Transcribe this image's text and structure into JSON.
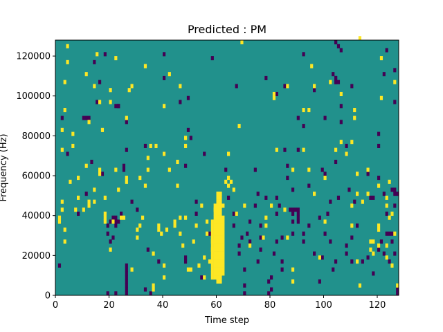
{
  "chart_data": {
    "type": "heatmap",
    "title": "Predicted : PM",
    "xlabel": "Time step",
    "ylabel": "Frequency (Hz)",
    "xlim": [
      0,
      128
    ],
    "ylim": [
      0,
      128000
    ],
    "xticks": [
      0,
      20,
      40,
      60,
      80,
      100,
      120
    ],
    "xtick_labels": [
      "0",
      "20",
      "40",
      "60",
      "80",
      "100",
      "120"
    ],
    "yticks": [
      0,
      20000,
      40000,
      60000,
      80000,
      100000,
      120000
    ],
    "ytick_labels": [
      "0",
      "20000",
      "40000",
      "60000",
      "80000",
      "100000",
      "120000"
    ],
    "grid": false,
    "legend": "none",
    "bin_width_hz": 2000,
    "colors": {
      "background_value": "#21918c",
      "low_value": "#440154",
      "high_value": "#fde725"
    },
    "high_cells": [
      [
        1,
        36000
      ],
      [
        1,
        38000
      ],
      [
        2,
        42000
      ],
      [
        2,
        46000
      ],
      [
        2,
        72000
      ],
      [
        2,
        82000
      ],
      [
        3,
        26000
      ],
      [
        3,
        32000
      ],
      [
        3,
        92000
      ],
      [
        3,
        106000
      ],
      [
        4,
        116000
      ],
      [
        4,
        124000
      ],
      [
        5,
        56000
      ],
      [
        6,
        74000
      ],
      [
        6,
        80000
      ],
      [
        7,
        42000
      ],
      [
        8,
        48000
      ],
      [
        8,
        58000
      ],
      [
        10,
        42000
      ],
      [
        11,
        64000
      ],
      [
        11,
        110000
      ],
      [
        12,
        44000
      ],
      [
        12,
        46000
      ],
      [
        12,
        86000
      ],
      [
        14,
        46000
      ],
      [
        14,
        52000
      ],
      [
        14,
        104000
      ],
      [
        15,
        120000
      ],
      [
        16,
        60000
      ],
      [
        16,
        62000
      ],
      [
        16,
        96000
      ],
      [
        17,
        82000
      ],
      [
        18,
        36000
      ],
      [
        18,
        38000
      ],
      [
        18,
        40000
      ],
      [
        18,
        48000
      ],
      [
        20,
        22000
      ],
      [
        20,
        96000
      ],
      [
        20,
        102000
      ],
      [
        21,
        36000
      ],
      [
        22,
        62000
      ],
      [
        22,
        118000
      ],
      [
        23,
        52000
      ],
      [
        24,
        38000
      ],
      [
        25,
        38000
      ],
      [
        26,
        88000
      ],
      [
        26,
        58000
      ],
      [
        26,
        56000
      ],
      [
        27,
        102000
      ],
      [
        28,
        12000
      ],
      [
        28,
        104000
      ],
      [
        30,
        28000
      ],
      [
        30,
        32000
      ],
      [
        31,
        58000
      ],
      [
        31,
        34000
      ],
      [
        32,
        38000
      ],
      [
        33,
        54000
      ],
      [
        33,
        114000
      ],
      [
        34,
        62000
      ],
      [
        34,
        68000
      ],
      [
        35,
        74000
      ],
      [
        36,
        2000
      ],
      [
        36,
        4000
      ],
      [
        36,
        20000
      ],
      [
        37,
        74000
      ],
      [
        38,
        34000
      ],
      [
        38,
        32000
      ],
      [
        39,
        30000
      ],
      [
        40,
        8000
      ],
      [
        40,
        14000
      ],
      [
        40,
        70000
      ],
      [
        40,
        94000
      ],
      [
        41,
        32000
      ],
      [
        42,
        62000
      ],
      [
        42,
        110000
      ],
      [
        44,
        34000
      ],
      [
        44,
        36000
      ],
      [
        45,
        54000
      ],
      [
        45,
        66000
      ],
      [
        46,
        30000
      ],
      [
        46,
        38000
      ],
      [
        46,
        104000
      ],
      [
        47,
        24000
      ],
      [
        48,
        38000
      ],
      [
        48,
        74000
      ],
      [
        48,
        78000
      ],
      [
        49,
        12000
      ],
      [
        50,
        12000
      ],
      [
        51,
        26000
      ],
      [
        52,
        34000
      ],
      [
        53,
        14000
      ],
      [
        54,
        44000
      ],
      [
        55,
        8000
      ],
      [
        55,
        18000
      ],
      [
        56,
        30000
      ],
      [
        56,
        36000
      ],
      [
        57,
        16000
      ],
      [
        58,
        22000
      ],
      [
        58,
        26000
      ],
      [
        59,
        42000
      ],
      [
        60,
        50000
      ],
      [
        61,
        50000
      ],
      [
        62,
        44000
      ],
      [
        63,
        56000
      ],
      [
        64,
        54000
      ],
      [
        64,
        58000
      ],
      [
        64,
        70000
      ],
      [
        65,
        56000
      ],
      [
        66,
        52000
      ],
      [
        67,
        40000
      ],
      [
        68,
        84000
      ],
      [
        69,
        126000
      ],
      [
        70,
        44000
      ],
      [
        72,
        24000
      ],
      [
        77,
        28000
      ],
      [
        78,
        34000
      ],
      [
        78,
        38000
      ],
      [
        80,
        44000
      ],
      [
        81,
        100000
      ],
      [
        81,
        98000
      ],
      [
        82,
        72000
      ],
      [
        85,
        42000
      ],
      [
        86,
        104000
      ],
      [
        86,
        28000
      ],
      [
        88,
        12000
      ],
      [
        88,
        6000
      ],
      [
        88,
        62000
      ],
      [
        92,
        72000
      ],
      [
        92,
        92000
      ],
      [
        94,
        62000
      ],
      [
        94,
        92000
      ],
      [
        95,
        114000
      ],
      [
        96,
        50000
      ],
      [
        96,
        104000
      ],
      [
        98,
        18000
      ],
      [
        100,
        58000
      ],
      [
        100,
        36000
      ],
      [
        102,
        106000
      ],
      [
        104,
        72000
      ],
      [
        106,
        76000
      ],
      [
        106,
        100000
      ],
      [
        108,
        70000
      ],
      [
        110,
        34000
      ],
      [
        110,
        44000
      ],
      [
        110,
        76000
      ],
      [
        111,
        88000
      ],
      [
        111,
        92000
      ],
      [
        112,
        16000
      ],
      [
        112,
        50000
      ],
      [
        112,
        60000
      ],
      [
        113,
        4000
      ],
      [
        113,
        128000
      ],
      [
        114,
        46000
      ],
      [
        116,
        62000
      ],
      [
        116,
        50000
      ],
      [
        117,
        22000
      ],
      [
        117,
        26000
      ],
      [
        118,
        20000
      ],
      [
        118,
        26000
      ],
      [
        120,
        24000
      ],
      [
        120,
        32000
      ],
      [
        120,
        54000
      ],
      [
        120,
        34000
      ],
      [
        121,
        118000
      ],
      [
        121,
        98000
      ],
      [
        123,
        18000
      ],
      [
        123,
        24000
      ],
      [
        123,
        44000
      ],
      [
        123,
        48000
      ],
      [
        124,
        56000
      ],
      [
        124,
        38000
      ],
      [
        125,
        14000
      ],
      [
        125,
        40000
      ],
      [
        126,
        30000
      ],
      [
        126,
        106000
      ],
      [
        127,
        4000
      ]
    ],
    "high_block": {
      "columns": [
        {
          "x": 58,
          "ylim": [
            8000,
            38000
          ]
        },
        {
          "x": 59,
          "ylim": [
            8000,
            46000
          ]
        },
        {
          "x": 60,
          "ylim": [
            6000,
            52000
          ]
        },
        {
          "x": 61,
          "ylim": [
            6000,
            52000
          ]
        },
        {
          "x": 62,
          "ylim": [
            10000,
            40000
          ]
        }
      ]
    },
    "low_cells": [
      [
        1,
        14000
      ],
      [
        2,
        88000
      ],
      [
        4,
        70000
      ],
      [
        8,
        40000
      ],
      [
        10,
        88000
      ],
      [
        11,
        50000
      ],
      [
        13,
        66000
      ],
      [
        14,
        116000
      ],
      [
        15,
        96000
      ],
      [
        16,
        106000
      ],
      [
        17,
        60000
      ],
      [
        18,
        120000
      ],
      [
        19,
        0
      ],
      [
        19,
        34000
      ],
      [
        19,
        30000
      ],
      [
        20,
        26000
      ],
      [
        21,
        28000
      ],
      [
        21,
        36000
      ],
      [
        22,
        0
      ],
      [
        22,
        34000
      ],
      [
        23,
        94000
      ],
      [
        24,
        40000
      ],
      [
        25,
        64000
      ],
      [
        25,
        62000
      ],
      [
        26,
        14000
      ],
      [
        26,
        86000
      ],
      [
        26,
        72000
      ],
      [
        26,
        12000
      ],
      [
        26,
        10000
      ],
      [
        26,
        8000
      ],
      [
        26,
        6000
      ],
      [
        26,
        4000
      ],
      [
        26,
        2000
      ],
      [
        26,
        0
      ],
      [
        28,
        46000
      ],
      [
        30,
        42000
      ],
      [
        33,
        2000
      ],
      [
        33,
        74000
      ],
      [
        34,
        22000
      ],
      [
        35,
        0
      ],
      [
        38,
        16000
      ],
      [
        40,
        120000
      ],
      [
        40,
        108000
      ],
      [
        40,
        70000
      ],
      [
        46,
        96000
      ],
      [
        48,
        18000
      ],
      [
        48,
        16000
      ],
      [
        48,
        64000
      ],
      [
        49,
        82000
      ],
      [
        49,
        98000
      ],
      [
        50,
        78000
      ],
      [
        52,
        40000
      ],
      [
        52,
        46000
      ],
      [
        54,
        8000
      ],
      [
        55,
        70000
      ],
      [
        57,
        30000
      ],
      [
        58,
        118000
      ],
      [
        60,
        22000
      ],
      [
        60,
        30000
      ],
      [
        63,
        62000
      ],
      [
        64,
        48000
      ],
      [
        66,
        34000
      ],
      [
        66,
        40000
      ],
      [
        67,
        104000
      ],
      [
        68,
        24000
      ],
      [
        68,
        20000
      ],
      [
        69,
        28000
      ],
      [
        70,
        12000
      ],
      [
        70,
        4000
      ],
      [
        70,
        0
      ],
      [
        71,
        30000
      ],
      [
        72,
        36000
      ],
      [
        72,
        26000
      ],
      [
        74,
        62000
      ],
      [
        74,
        44000
      ],
      [
        75,
        16000
      ],
      [
        75,
        50000
      ],
      [
        76,
        28000
      ],
      [
        76,
        34000
      ],
      [
        76,
        22000
      ],
      [
        78,
        48000
      ],
      [
        78,
        108000
      ],
      [
        79,
        0
      ],
      [
        79,
        6000
      ],
      [
        80,
        2000
      ],
      [
        80,
        8000
      ],
      [
        81,
        20000
      ],
      [
        82,
        100000
      ],
      [
        82,
        40000
      ],
      [
        82,
        48000
      ],
      [
        82,
        26000
      ],
      [
        83,
        44000
      ],
      [
        84,
        12000
      ],
      [
        84,
        28000
      ],
      [
        84,
        16000
      ],
      [
        85,
        72000
      ],
      [
        85,
        104000
      ],
      [
        86,
        64000
      ],
      [
        86,
        58000
      ],
      [
        88,
        30000
      ],
      [
        88,
        40000
      ],
      [
        88,
        52000
      ],
      [
        88,
        36000
      ],
      [
        90,
        72000
      ],
      [
        90,
        88000
      ],
      [
        90,
        36000
      ],
      [
        90,
        38000
      ],
      [
        90,
        40000
      ],
      [
        92,
        120000
      ],
      [
        92,
        84000
      ],
      [
        92,
        30000
      ],
      [
        92,
        26000
      ],
      [
        94,
        34000
      ],
      [
        94,
        54000
      ],
      [
        96,
        20000
      ],
      [
        96,
        102000
      ],
      [
        98,
        38000
      ],
      [
        98,
        6000
      ],
      [
        99,
        18000
      ],
      [
        99,
        62000
      ],
      [
        100,
        60000
      ],
      [
        100,
        88000
      ],
      [
        100,
        30000
      ],
      [
        101,
        40000
      ],
      [
        102,
        46000
      ],
      [
        102,
        26000
      ],
      [
        103,
        12000
      ],
      [
        104,
        106000
      ],
      [
        104,
        126000
      ],
      [
        104,
        108000
      ],
      [
        104,
        66000
      ],
      [
        104,
        16000
      ],
      [
        105,
        48000
      ],
      [
        106,
        94000
      ],
      [
        106,
        86000
      ],
      [
        108,
        24000
      ],
      [
        108,
        20000
      ],
      [
        109,
        52000
      ],
      [
        110,
        16000
      ],
      [
        110,
        28000
      ],
      [
        111,
        46000
      ],
      [
        112,
        34000
      ],
      [
        114,
        16000
      ],
      [
        116,
        60000
      ],
      [
        116,
        18000
      ],
      [
        117,
        48000
      ],
      [
        118,
        10000
      ],
      [
        118,
        48000
      ],
      [
        120,
        22000
      ],
      [
        120,
        58000
      ],
      [
        120,
        80000
      ],
      [
        120,
        74000
      ],
      [
        121,
        26000
      ],
      [
        122,
        50000
      ],
      [
        122,
        20000
      ],
      [
        123,
        40000
      ],
      [
        124,
        16000
      ],
      [
        125,
        26000
      ],
      [
        126,
        20000
      ],
      [
        126,
        44000
      ],
      [
        126,
        112000
      ],
      [
        126,
        96000
      ],
      [
        127,
        50000
      ],
      [
        127,
        2000
      ],
      [
        127,
        0
      ],
      [
        103,
        110000
      ],
      [
        104,
        108000
      ],
      [
        108,
        74000
      ],
      [
        108,
        70000
      ],
      [
        110,
        104000
      ],
      [
        122,
        110000
      ],
      [
        123,
        122000
      ]
    ],
    "low_block_cells": [
      [
        20,
        36000
      ],
      [
        21,
        36000
      ],
      [
        22,
        36000
      ],
      [
        23,
        36000
      ],
      [
        21,
        38000
      ],
      [
        22,
        38000
      ],
      [
        12,
        88000
      ],
      [
        11,
        88000
      ],
      [
        22,
        94000
      ],
      [
        23,
        94000
      ],
      [
        87,
        42000
      ],
      [
        88,
        42000
      ],
      [
        89,
        42000
      ],
      [
        90,
        42000
      ],
      [
        104,
        106000
      ],
      [
        105,
        106000
      ],
      [
        123,
        30000
      ],
      [
        124,
        30000
      ],
      [
        125,
        30000
      ],
      [
        125,
        52000
      ],
      [
        126,
        52000
      ],
      [
        126,
        50000
      ],
      [
        104,
        126000
      ],
      [
        105,
        124000
      ],
      [
        106,
        122000
      ]
    ]
  }
}
